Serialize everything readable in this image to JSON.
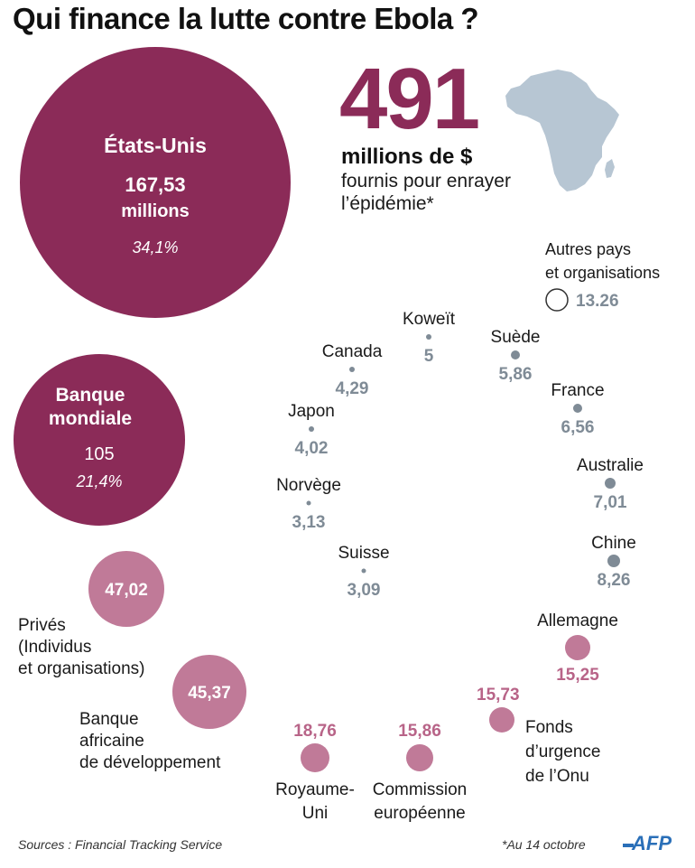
{
  "title": "Qui finance la lutte contre Ebola ?",
  "headline": {
    "total": "491",
    "unit": "millions de $",
    "description": "fournis pour enrayer l’épidémie*"
  },
  "chart_data": {
    "type": "bubble",
    "title": "Qui finance la lutte contre Ebola ?",
    "unit": "millions de $",
    "total": 491,
    "colors": {
      "major": "#8b2b58",
      "medium": "#c07a98",
      "small_dot": "#7f8b96",
      "small_text": "#7f8b96",
      "medium_text": "#b86488",
      "other_ring": "#333333",
      "africa": "#b7c6d3"
    },
    "series": [
      {
        "label": "États-Unis",
        "value": 167.53,
        "value_text": "167,53",
        "value_unit": "millions",
        "share": "34,1%",
        "tier": "major"
      },
      {
        "label": "Banque mondiale",
        "value": 105,
        "value_text": "105",
        "share": "21,4%",
        "tier": "major"
      },
      {
        "label": "Privés (Individus et organisations)",
        "value": 47.02,
        "value_text": "47,02",
        "tier": "medium"
      },
      {
        "label": "Banque africaine de développement",
        "value": 45.37,
        "value_text": "45,37",
        "tier": "medium"
      },
      {
        "label": "Royaume-Uni",
        "value": 18.76,
        "value_text": "18,76",
        "tier": "small_pink"
      },
      {
        "label": "Commission européenne",
        "value": 15.86,
        "value_text": "15,86",
        "tier": "small_pink"
      },
      {
        "label": "Fonds d’urgence de l’Onu",
        "value": 15.73,
        "value_text": "15,73",
        "tier": "small_pink"
      },
      {
        "label": "Allemagne",
        "value": 15.25,
        "value_text": "15,25",
        "tier": "small_pink"
      },
      {
        "label": "Chine",
        "value": 8.26,
        "value_text": "8,26",
        "tier": "small"
      },
      {
        "label": "Australie",
        "value": 7.01,
        "value_text": "7,01",
        "tier": "small"
      },
      {
        "label": "France",
        "value": 6.56,
        "value_text": "6,56",
        "tier": "small"
      },
      {
        "label": "Suède",
        "value": 5.86,
        "value_text": "5,86",
        "tier": "small"
      },
      {
        "label": "Koweït",
        "value": 5,
        "value_text": "5",
        "tier": "small"
      },
      {
        "label": "Canada",
        "value": 4.29,
        "value_text": "4,29",
        "tier": "small"
      },
      {
        "label": "Japon",
        "value": 4.02,
        "value_text": "4,02",
        "tier": "small"
      },
      {
        "label": "Norvège",
        "value": 3.13,
        "value_text": "3,13",
        "tier": "small"
      },
      {
        "label": "Suisse",
        "value": 3.09,
        "value_text": "3,09",
        "tier": "small"
      },
      {
        "label": "Autres pays et organisations",
        "value": 13.26,
        "value_text": "13.26",
        "tier": "other"
      }
    ]
  },
  "footer": {
    "source": "Sources : Financial Tracking Service",
    "note": "*Au 14 octobre",
    "logo": "AFP"
  }
}
